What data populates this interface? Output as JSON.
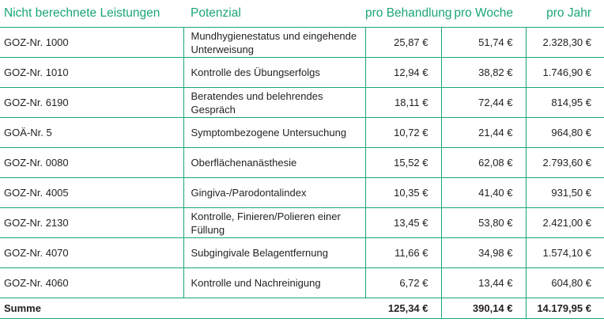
{
  "table": {
    "headers": {
      "service": "Nicht berechnete Leistungen",
      "potential": "Potenzial",
      "per_treatment": "pro Behandlung",
      "per_week": "pro Woche",
      "per_year": "pro Jahr"
    },
    "rows": [
      {
        "code": "GOZ-Nr. 1000",
        "potential": "Mundhygienestatus und eingehende Unterweisung",
        "per_treatment": "25,87 €",
        "per_week": "51,74 €",
        "per_year": "2.328,30 €"
      },
      {
        "code": "GOZ-Nr. 1010",
        "potential": "Kontrolle des Übungserfolgs",
        "per_treatment": "12,94 €",
        "per_week": "38,82 €",
        "per_year": "1.746,90 €"
      },
      {
        "code": "GOZ-Nr. 6190",
        "potential": "Beratendes und belehrendes Gespräch",
        "per_treatment": "18,11 €",
        "per_week": "72,44 €",
        "per_year": "814,95 €"
      },
      {
        "code": "GOÄ-Nr. 5",
        "potential": "Symptombezogene Untersuchung",
        "per_treatment": "10,72 €",
        "per_week": "21,44 €",
        "per_year": "964,80 €"
      },
      {
        "code": "GOZ-Nr. 0080",
        "potential": "Oberflächenanästhesie",
        "per_treatment": "15,52 €",
        "per_week": "62,08 €",
        "per_year": "2.793,60 €"
      },
      {
        "code": "GOZ-Nr. 4005",
        "potential": "Gingiva-/Parodontalindex",
        "per_treatment": "10,35 €",
        "per_week": "41,40 €",
        "per_year": "931,50 €"
      },
      {
        "code": "GOZ-Nr. 2130",
        "potential": "Kontrolle, Finieren/Polieren einer Füllung",
        "per_treatment": "13,45 €",
        "per_week": "53,80 €",
        "per_year": "2.421,00 €"
      },
      {
        "code": "GOZ-Nr. 4070",
        "potential": "Subgingivale Belagentfernung",
        "per_treatment": "11,66 €",
        "per_week": "34,98 €",
        "per_year": "1.574,10 €"
      },
      {
        "code": "GOZ-Nr. 4060",
        "potential": "Kontrolle und Nachreinigung",
        "per_treatment": "6,72 €",
        "per_week": "13,44 €",
        "per_year": "604,80 €"
      }
    ],
    "sum": {
      "label": "Summe",
      "per_treatment": "125,34 €",
      "per_week": "390,14 €",
      "per_year": "14.179,95 €"
    },
    "accent_color": "#1aa579"
  }
}
